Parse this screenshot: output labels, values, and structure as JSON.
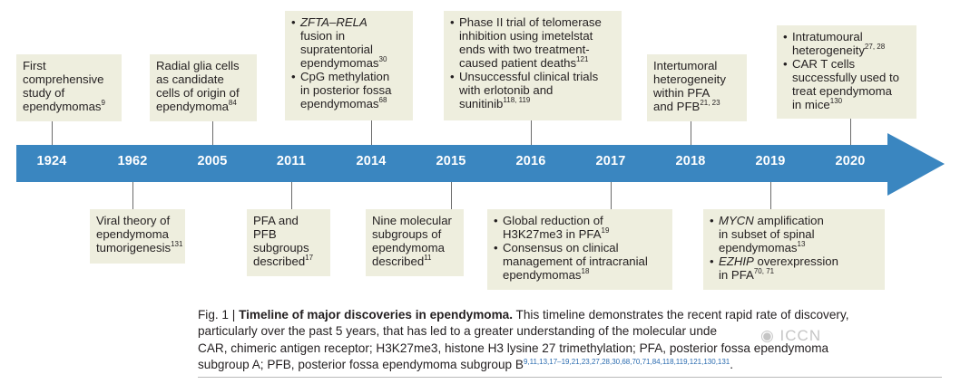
{
  "timeline": {
    "years": [
      "1924",
      "1962",
      "2005",
      "2011",
      "2014",
      "2015",
      "2016",
      "2017",
      "2018",
      "2019",
      "2020"
    ],
    "arrow_color": "#3a86c0",
    "box_color": "#eeeede"
  },
  "boxes_above": [
    {
      "year": "1924",
      "lines": [
        "First",
        "comprehensive",
        "study of"
      ],
      "last": "ependymomas",
      "last_sup": "9"
    },
    {
      "year": "2005",
      "lines": [
        "Radial glia cells",
        "as candidate",
        "cells of origin of"
      ],
      "last": "ependymoma",
      "last_sup": "84"
    },
    {
      "year": "2014",
      "bullets": [
        {
          "italic": "ZFTA–RELA",
          "rest": [
            "fusion in",
            "supratentorial"
          ],
          "last": "ependymomas",
          "sup": "30"
        },
        {
          "first": "CpG methylation",
          "rest": [
            "in posterior fossa"
          ],
          "last": "ependymomas",
          "sup": "68"
        }
      ]
    },
    {
      "year": "2016",
      "bullets": [
        {
          "first": "Phase II trial of telomerase",
          "rest": [
            "inhibition using imetelstat",
            "ends with two treatment-"
          ],
          "last": "caused patient deaths",
          "sup": "121"
        },
        {
          "first": "Unsuccessful clinical trials",
          "rest": [
            "with erlotonib and"
          ],
          "last": "sunitinib",
          "sup": "118, 119"
        }
      ]
    },
    {
      "year": "2018",
      "lines": [
        "Intertumoral",
        "heterogeneity",
        "within PFA"
      ],
      "last": "and PFB",
      "last_sup": "21, 23"
    },
    {
      "year": "2020",
      "bullets": [
        {
          "first": "Intratumoural",
          "rest": [],
          "last": "heterogeneity",
          "sup": "27, 28"
        },
        {
          "first": "CAR T cells",
          "rest": [
            "successfully used to",
            "treat ependymoma"
          ],
          "last": "in mice",
          "sup": "130"
        }
      ]
    }
  ],
  "boxes_below": [
    {
      "year": "1962",
      "lines": [
        "Viral theory of",
        "ependymoma"
      ],
      "last": "tumorigenesis",
      "last_sup": "131"
    },
    {
      "year": "2011",
      "lines": [
        "PFA and",
        "PFB",
        "subgroups"
      ],
      "last": "described",
      "last_sup": "17"
    },
    {
      "year": "2015",
      "lines": [
        "Nine molecular",
        "subgroups of",
        "ependymoma"
      ],
      "last": "described",
      "last_sup": "11"
    },
    {
      "year": "2017",
      "bullets": [
        {
          "first": "Global reduction of",
          "rest": [],
          "last": "H3K27me3 in PFA",
          "sup": "19"
        },
        {
          "first": "Consensus on clinical",
          "rest": [
            "management of intracranial"
          ],
          "last": "ependymomas",
          "sup": "18"
        }
      ]
    },
    {
      "year": "2019",
      "bullets": [
        {
          "italic": "MYCN",
          "italic_tail": " amplification",
          "rest": [
            "in subset of spinal"
          ],
          "last": "ependymomas",
          "sup": "13"
        },
        {
          "italic": "EZHIP",
          "italic_tail": " overexpression",
          "rest": [],
          "last": "in PFA",
          "sup": "70, 71"
        }
      ]
    }
  ],
  "caption": {
    "label": "Fig. 1 | ",
    "title": "Timeline of major discoveries in ependymoma.",
    "line1_rest": " This timeline demonstrates the recent rapid rate of discovery,",
    "line2": "particularly over the past 5 years, that has led to a greater understanding of the molecular unde",
    "line3": "CAR, chimeric antigen receptor; H3K27me3, histone H3 lysine 27 trimethylation; PFA, posterior fossa ependymoma",
    "line4": "subgroup A; PFB, posterior fossa ependymoma subgroup B",
    "refs": "9,11,13,17–19,21,23,27,28,30,68,70,71,84,118,119,121,130,131",
    "end": "."
  }
}
